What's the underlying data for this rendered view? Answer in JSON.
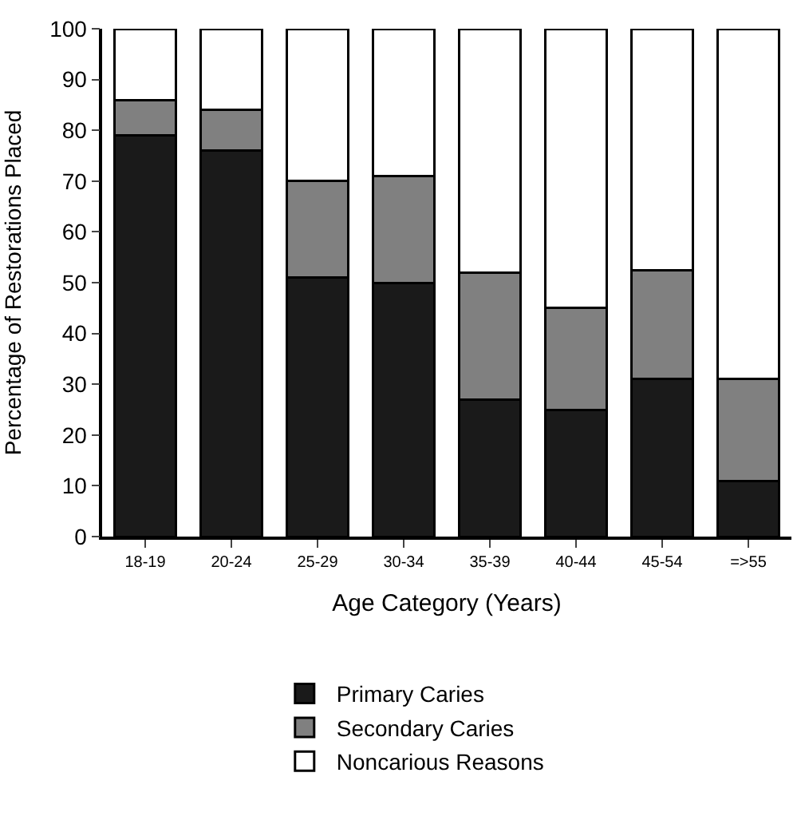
{
  "chart_data": {
    "type": "bar",
    "stacked": true,
    "xlabel": "Age Category (Years)",
    "ylabel": "Percentage of Restorations Placed",
    "categories": [
      "18-19",
      "20-24",
      "25-29",
      "30-34",
      "35-39",
      "40-44",
      "45-54",
      "=>55"
    ],
    "series": [
      {
        "name": "Primary Caries",
        "color": "#1a1a1a",
        "values": [
          79,
          76,
          51,
          50,
          27,
          25,
          31,
          11
        ]
      },
      {
        "name": "Secondary Caries",
        "color": "#808080",
        "values": [
          7,
          8,
          19,
          21,
          25,
          20,
          21.5,
          20
        ]
      },
      {
        "name": "Noncarious Reasons",
        "color": "#ffffff",
        "values": [
          14,
          16,
          30,
          29,
          48,
          55,
          47.5,
          69
        ]
      }
    ],
    "ylim": [
      0,
      100
    ],
    "yticks": [
      0,
      10,
      20,
      30,
      40,
      50,
      60,
      70,
      80,
      90,
      100
    ],
    "legend": "bottom"
  }
}
